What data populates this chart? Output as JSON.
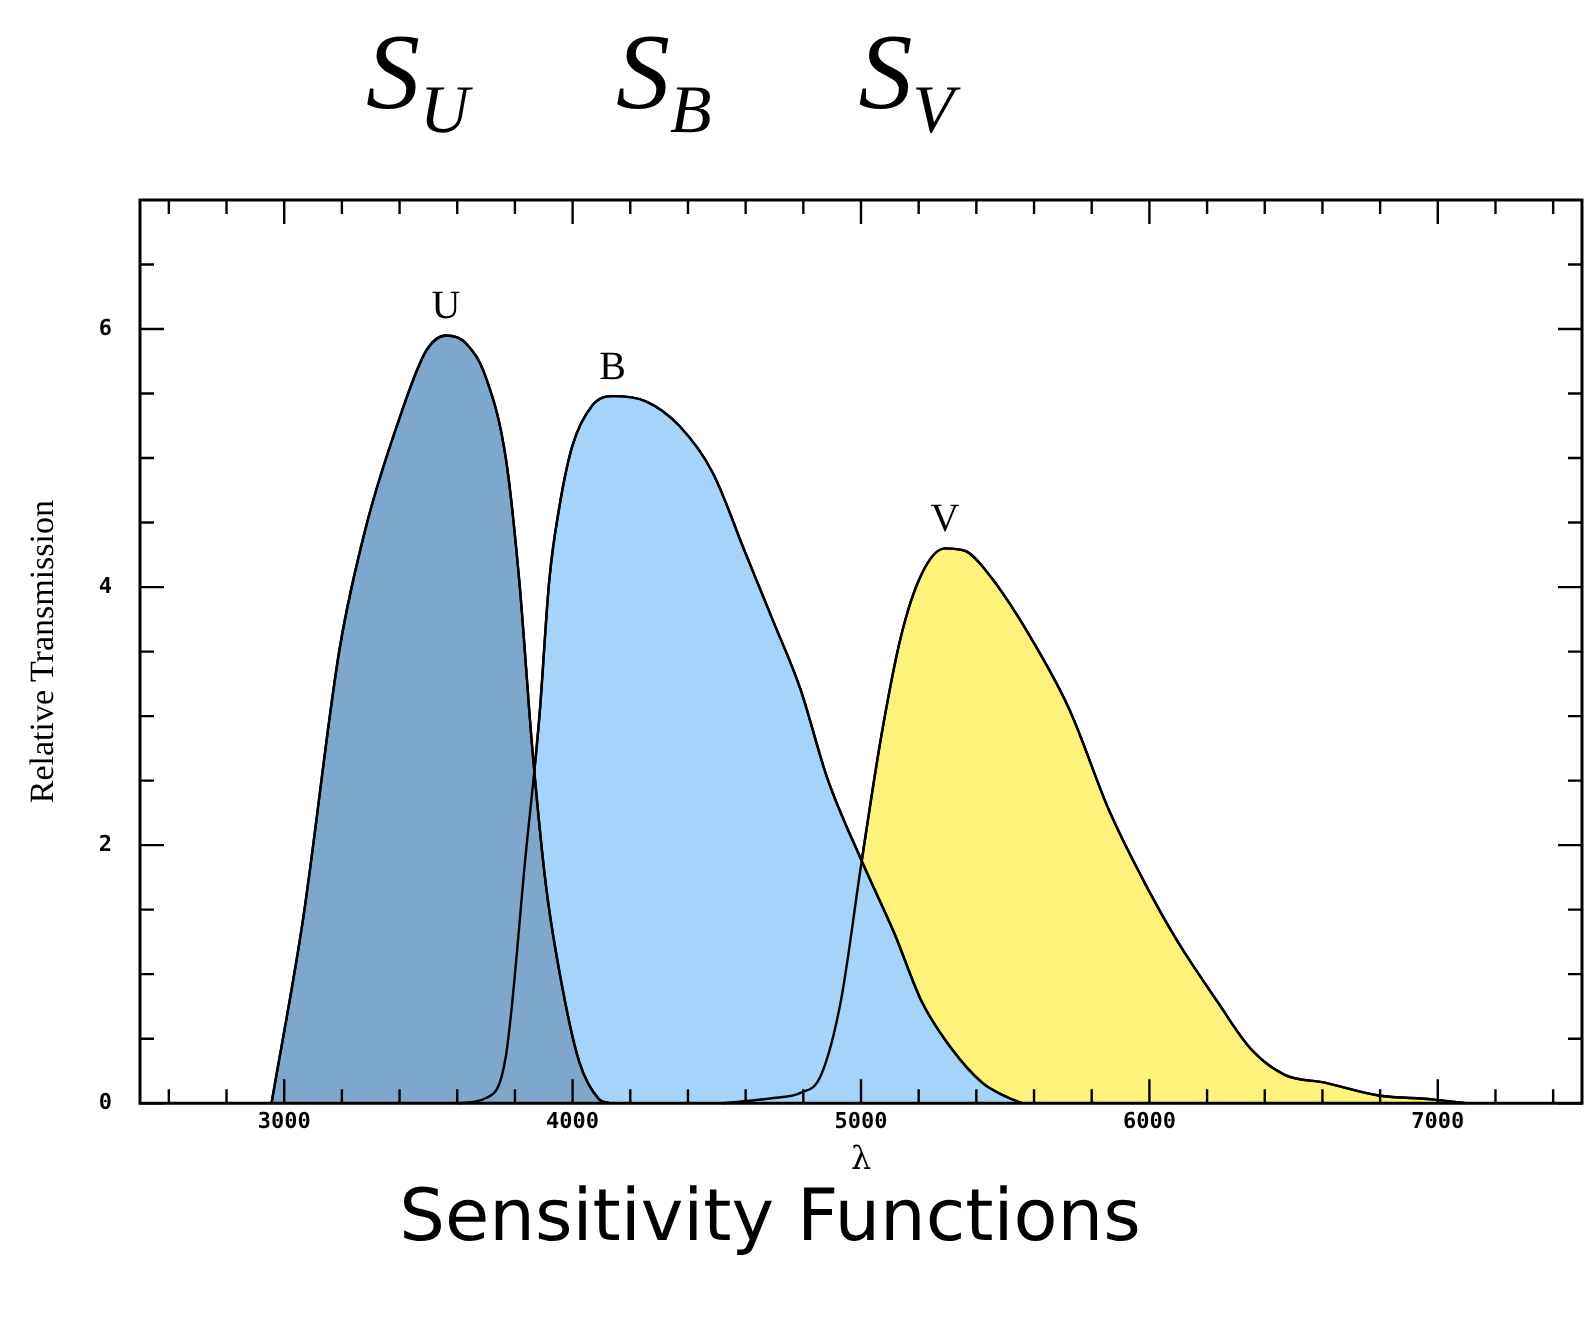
{
  "chart_data": {
    "type": "area",
    "title": "S$_{U}$ S$_{B}$ S$_{V}$",
    "xlabel": "λ",
    "ylabel": "Relative Transmission",
    "annotations": [
      "Sensitivity Functions"
    ],
    "xlim": [
      2500,
      7500
    ],
    "ylim": [
      0,
      7
    ],
    "xticks": [
      {
        "value": 2600,
        "label": null
      },
      {
        "value": 2800,
        "label": null
      },
      3000,
      {
        "value": 3200,
        "label": null
      },
      {
        "value": 3400,
        "label": null
      },
      {
        "value": 3600,
        "label": null
      },
      {
        "value": 3800,
        "label": null
      },
      4000,
      {
        "value": 4200,
        "label": null
      },
      {
        "value": 4400,
        "label": null
      },
      {
        "value": 4600,
        "label": null
      },
      {
        "value": 4800,
        "label": null
      },
      5000,
      {
        "value": 5200,
        "label": null
      },
      {
        "value": 5400,
        "label": null
      },
      {
        "value": 5600,
        "label": null
      },
      {
        "value": 5800,
        "label": null
      },
      6000,
      {
        "value": 6200,
        "label": null
      },
      {
        "value": 6400,
        "label": null
      },
      {
        "value": 6600,
        "label": null
      },
      {
        "value": 6800,
        "label": null
      },
      7000,
      {
        "value": 7200,
        "label": null
      },
      {
        "value": 7400,
        "label": null
      }
    ],
    "yticks": [
      0,
      {
        "value": 0.5,
        "label": null
      },
      {
        "value": 1,
        "label": null
      },
      {
        "value": 1.5,
        "label": null
      },
      2,
      {
        "value": 2.5,
        "label": null
      },
      {
        "value": 3,
        "label": null
      },
      {
        "value": 3.5,
        "label": null
      },
      4,
      {
        "value": 4.5,
        "label": null
      },
      {
        "value": 5,
        "label": null
      },
      {
        "value": 5.5,
        "label": null
      },
      6,
      {
        "value": 6.5,
        "label": null
      }
    ],
    "grid": false,
    "legend": false,
    "marker": "none",
    "line_style": "solid",
    "series": [
      {
        "name": "U",
        "color": "#7ea8cb",
        "x": [
          2956,
          3065,
          3192,
          3284,
          3400,
          3492,
          3561,
          3630,
          3700,
          3769,
          3815,
          3861,
          3908,
          3965,
          4023,
          4092,
          4127
        ],
        "values": [
          0,
          1.42,
          3.52,
          4.47,
          5.31,
          5.83,
          5.95,
          5.89,
          5.62,
          4.99,
          4.05,
          2.73,
          1.68,
          0.89,
          0.32,
          0.03,
          0
        ]
      },
      {
        "name": "B",
        "color": "#a5d4fa",
        "x": [
          3607,
          3700,
          3769,
          3838,
          3885,
          3919,
          3954,
          4000,
          4069,
          4139,
          4254,
          4370,
          4485,
          4600,
          4693,
          4790,
          4883,
          5000,
          5117,
          5210,
          5315,
          5420,
          5513,
          5559
        ],
        "values": [
          0,
          0.04,
          0.37,
          1.94,
          3.0,
          4.05,
          4.62,
          5.1,
          5.41,
          5.48,
          5.44,
          5.25,
          4.89,
          4.26,
          3.75,
          3.21,
          2.52,
          1.89,
          1.31,
          0.79,
          0.42,
          0.16,
          0.04,
          0
        ]
      },
      {
        "name": "V",
        "color": "#fff27a",
        "x": [
          4520,
          4697,
          4790,
          4860,
          4930,
          5000,
          5070,
          5140,
          5210,
          5291,
          5361,
          5443,
          5583,
          5723,
          5862,
          6002,
          6096,
          6235,
          6352,
          6469,
          6608,
          6795,
          6981,
          7098
        ],
        "values": [
          0,
          0.04,
          0.08,
          0.21,
          0.79,
          1.84,
          2.84,
          3.63,
          4.1,
          4.3,
          4.28,
          4.1,
          3.63,
          3.05,
          2.26,
          1.63,
          1.26,
          0.79,
          0.42,
          0.22,
          0.16,
          0.06,
          0.03,
          0
        ]
      }
    ]
  }
}
